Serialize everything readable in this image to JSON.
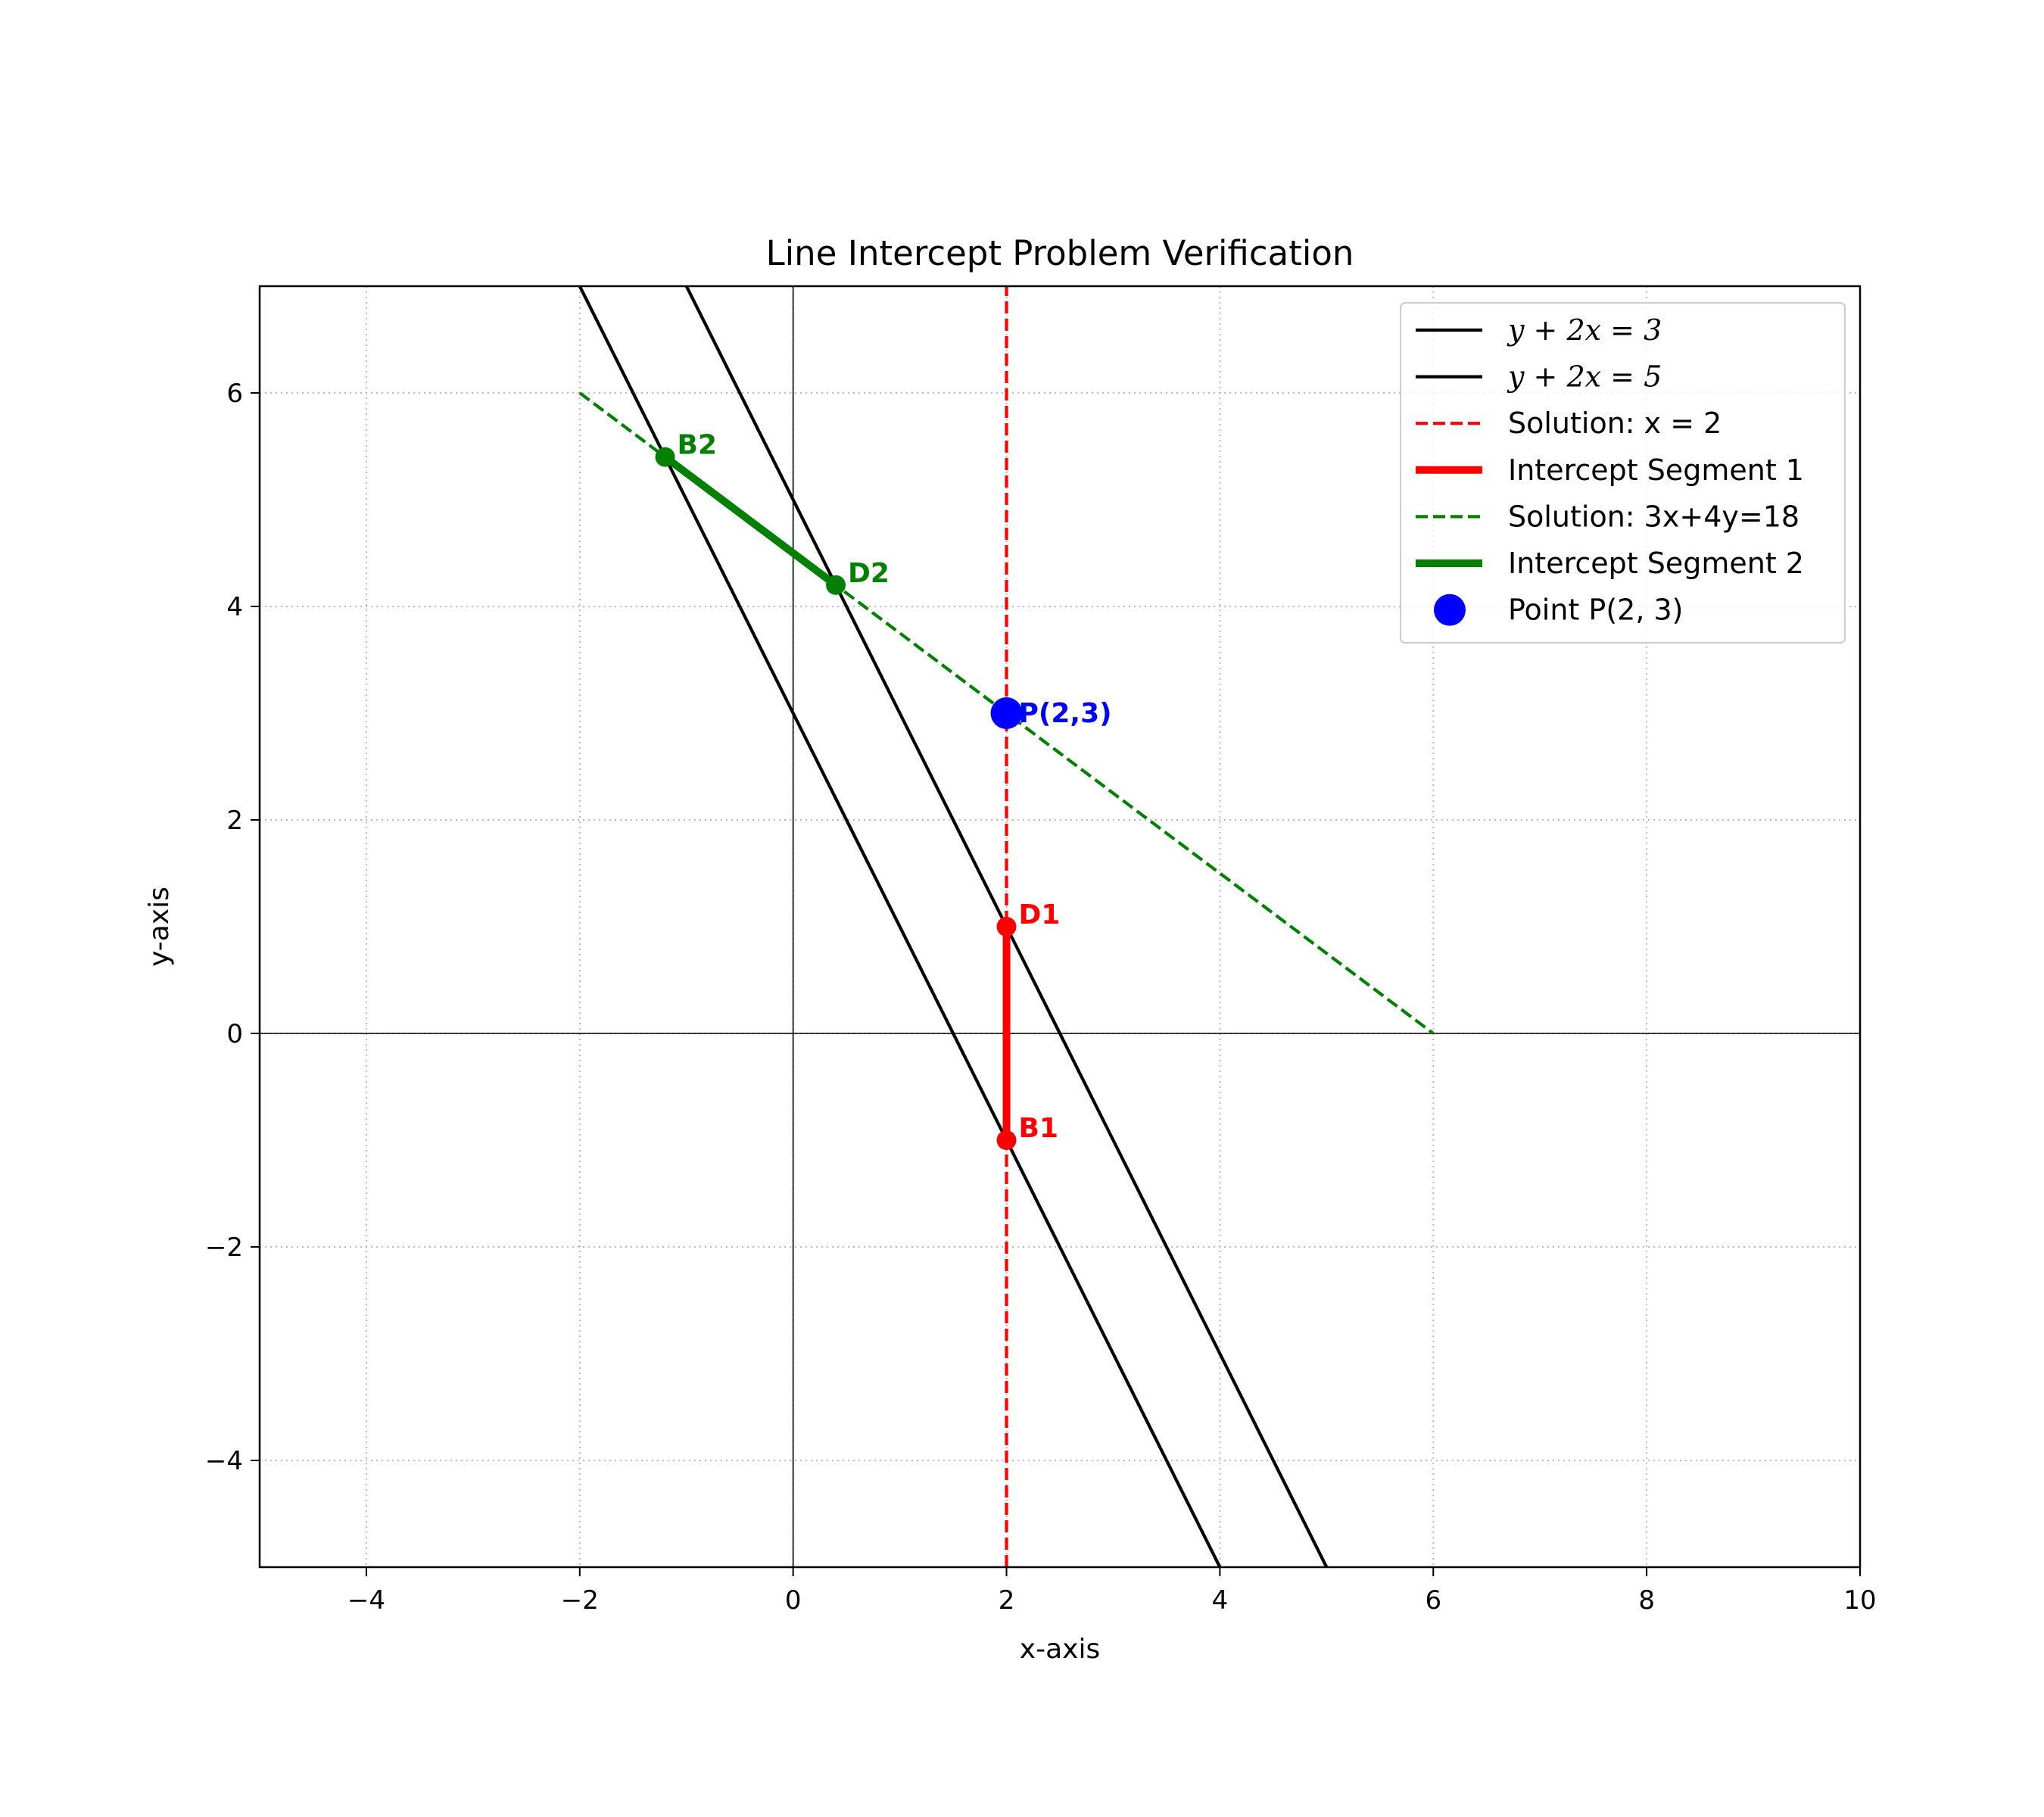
{
  "chart_data": {
    "type": "line",
    "title": "Line Intercept Problem Verification",
    "xlabel": "x-axis",
    "ylabel": "y-axis",
    "xlim": [
      -5,
      10
    ],
    "ylim": [
      -5,
      7
    ],
    "xticks": [
      -4,
      -2,
      0,
      2,
      4,
      6,
      8,
      10
    ],
    "yticks": [
      -4,
      -2,
      0,
      2,
      4,
      6
    ],
    "xtick_labels": [
      "−4",
      "−2",
      "0",
      "2",
      "4",
      "6",
      "8",
      "10"
    ],
    "ytick_labels": [
      "−4",
      "−2",
      "0",
      "2",
      "4",
      "6"
    ],
    "grid": true,
    "legend_position": "top-right",
    "series": [
      {
        "name": "y + 2x = 3",
        "style": "solid",
        "color": "#000000",
        "x": [
          -2,
          4
        ],
        "y": [
          7,
          -5
        ]
      },
      {
        "name": "y + 2x = 5",
        "style": "solid",
        "color": "#000000",
        "x": [
          -1,
          5
        ],
        "y": [
          7,
          -5
        ]
      },
      {
        "name": "Solution: x = 2",
        "style": "dashed",
        "color": "#ff0000",
        "x": [
          2,
          2
        ],
        "y": [
          -5,
          7
        ]
      },
      {
        "name": "Intercept Segment 1",
        "style": "thick",
        "color": "#ff0000",
        "x": [
          2,
          2
        ],
        "y": [
          -1,
          1
        ]
      },
      {
        "name": "Solution: 3x+4y=18",
        "style": "dashed",
        "color": "#008000",
        "x": [
          -2,
          6
        ],
        "y": [
          6,
          0
        ]
      },
      {
        "name": "Intercept Segment 2",
        "style": "thick",
        "color": "#008000",
        "x": [
          -1.2,
          0.4
        ],
        "y": [
          5.4,
          4.2
        ]
      },
      {
        "name": "Point P(2, 3)",
        "style": "marker",
        "color": "#0000ff",
        "x": [
          2
        ],
        "y": [
          3
        ]
      }
    ],
    "points": [
      {
        "label": "B2",
        "x": -1.2,
        "y": 5.4,
        "color": "#008000"
      },
      {
        "label": "D2",
        "x": 0.4,
        "y": 4.2,
        "color": "#008000"
      },
      {
        "label": "D1",
        "x": 2,
        "y": 1,
        "color": "#ff0000"
      },
      {
        "label": "B1",
        "x": 2,
        "y": -1,
        "color": "#ff0000"
      },
      {
        "label": "P(2,3)",
        "x": 2,
        "y": 3,
        "color": "#0000ff"
      }
    ]
  }
}
